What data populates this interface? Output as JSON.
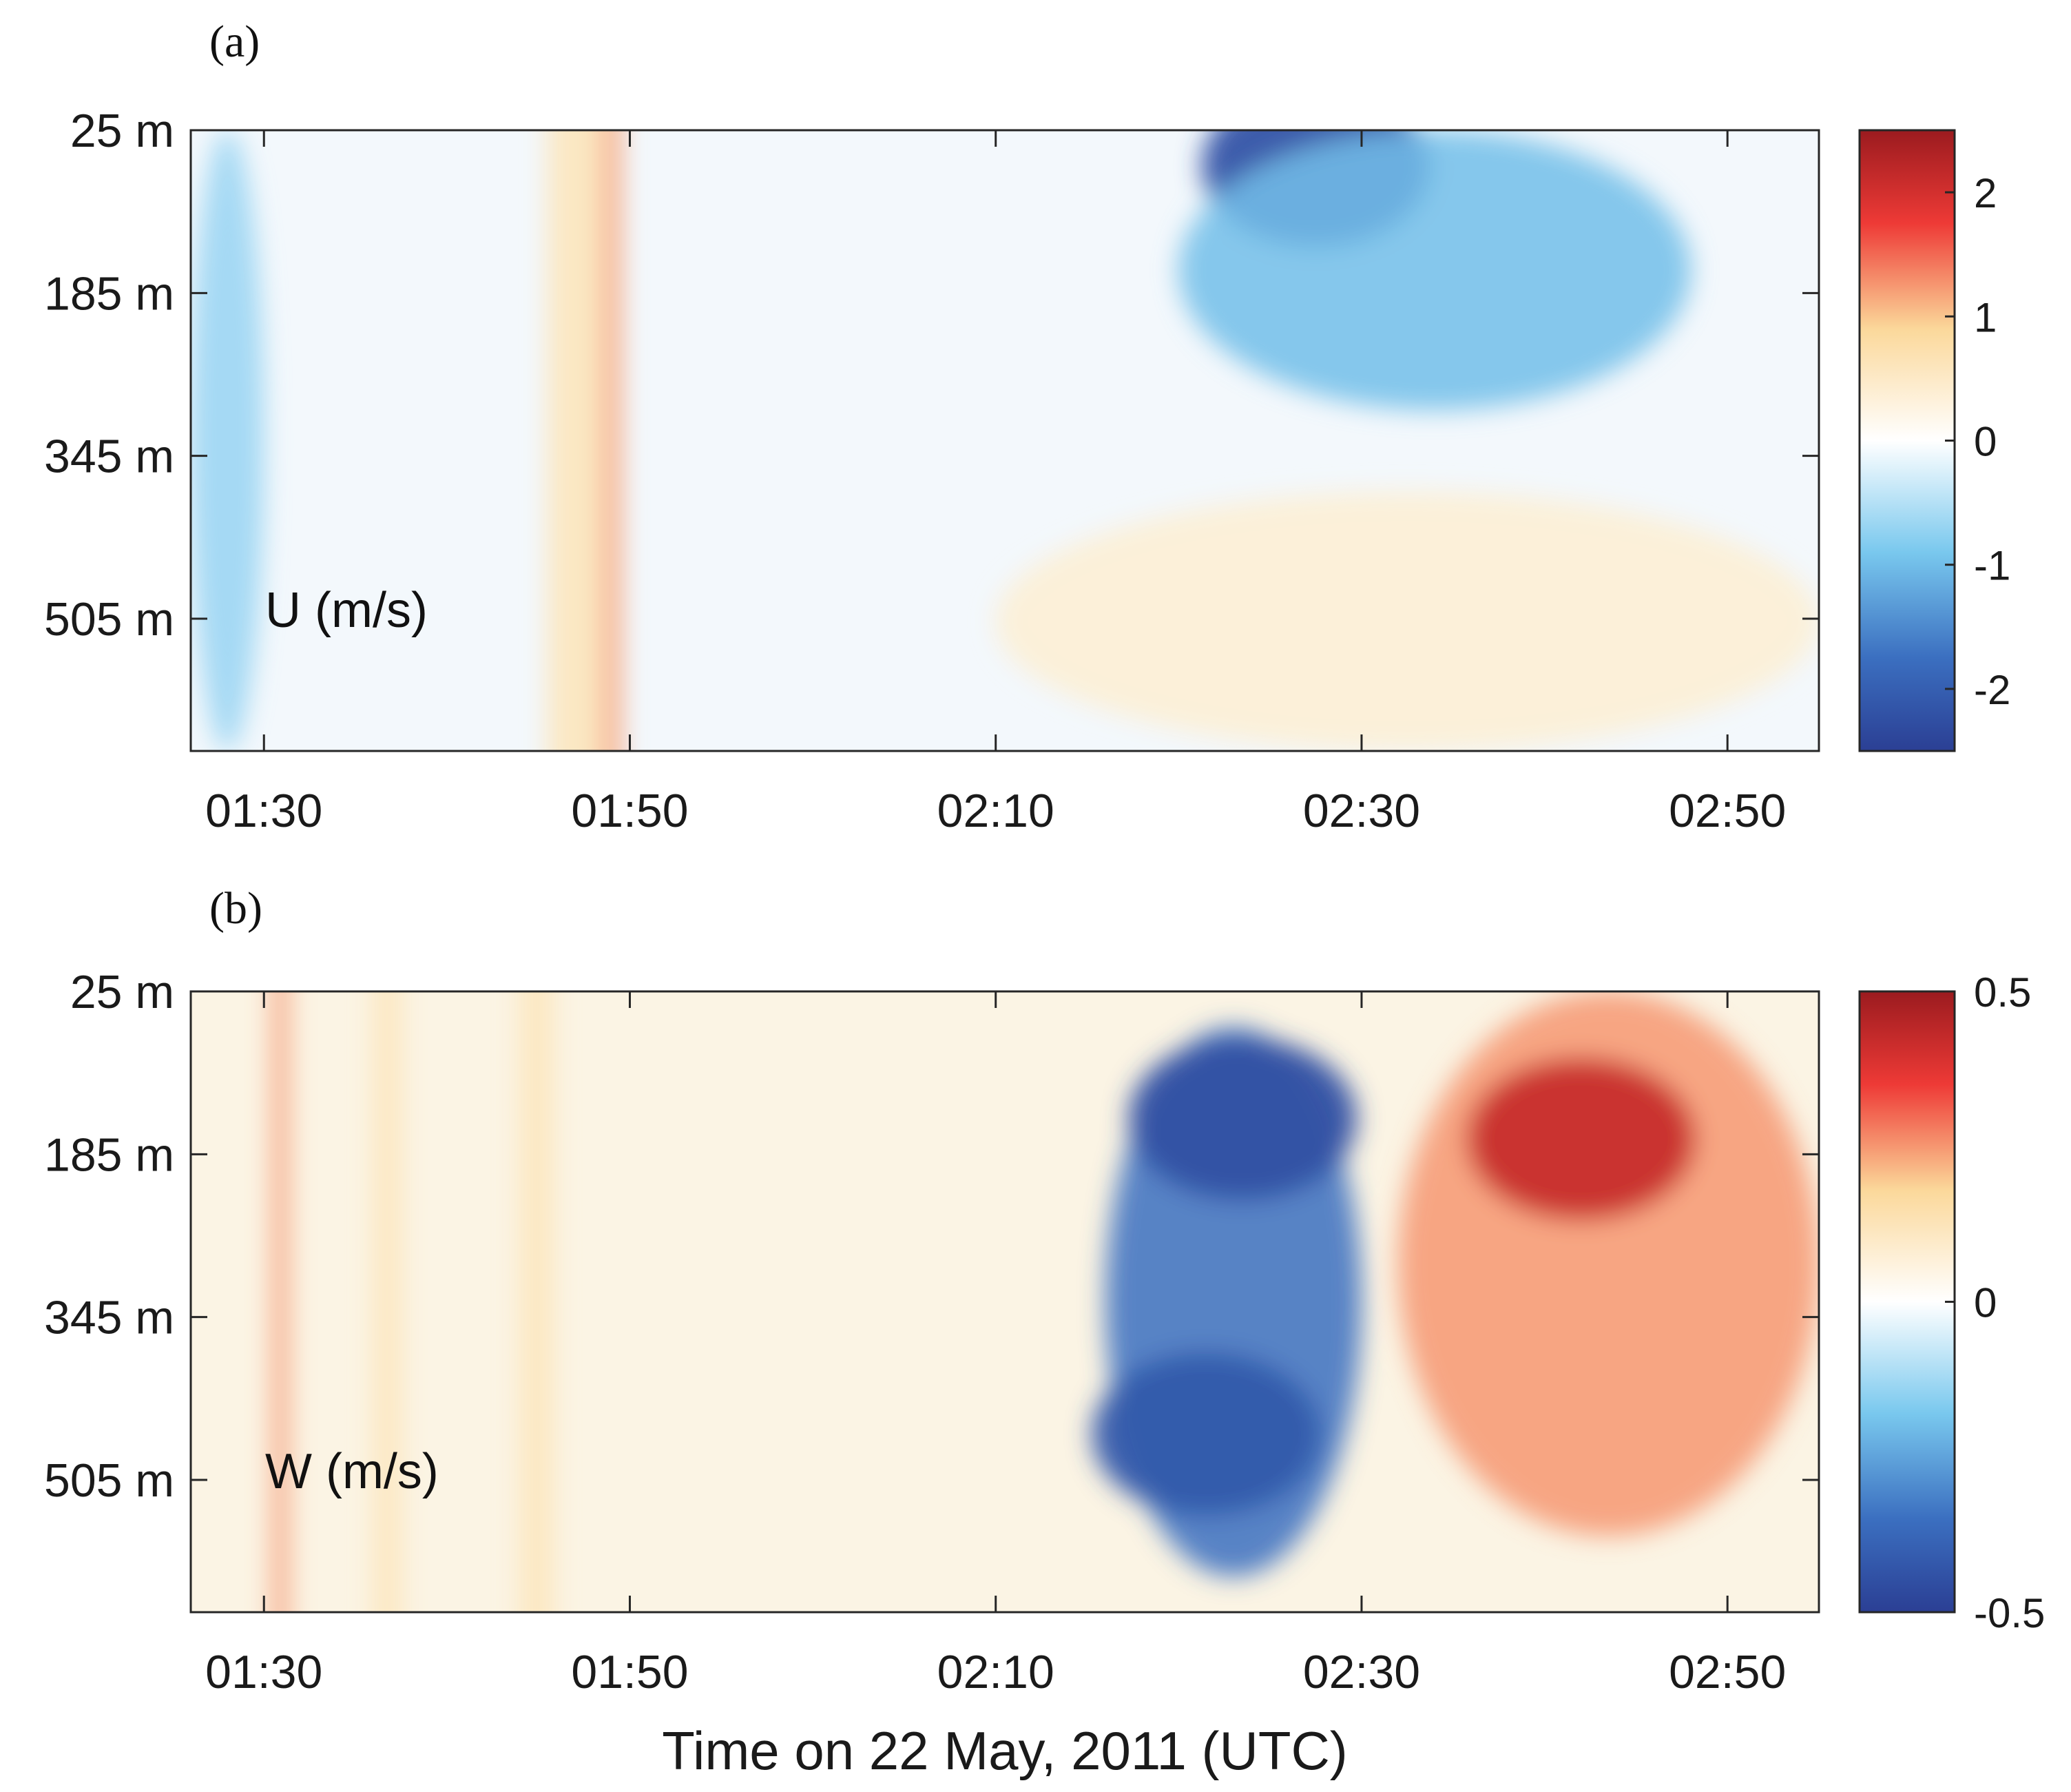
{
  "chart_data": [
    {
      "type": "heatmap",
      "panel": "(a)",
      "inner_label": "U (m/s)",
      "x_tick_labels": [
        "01:30",
        "01:50",
        "02:10",
        "02:30",
        "02:50"
      ],
      "x_ticks_min": [
        90,
        110,
        130,
        150,
        170
      ],
      "xlim_min": [
        86,
        175
      ],
      "y_tick_labels": [
        "25 m",
        "185 m",
        "345 m",
        "505 m"
      ],
      "y_ticks": [
        25,
        185,
        345,
        505
      ],
      "ylim": [
        25,
        635
      ],
      "y_reversed": true,
      "colorbar": {
        "range": [
          -2.5,
          2.5
        ],
        "tick_values": [
          2,
          1,
          0,
          -1,
          -2
        ],
        "tick_labels": [
          "2",
          "1",
          "0",
          "-1",
          "-2"
        ],
        "colormap": "blue-white-red"
      },
      "features": [
        {
          "kind": "band",
          "t_min": 105.5,
          "t_max": 108.5,
          "value": 0.6
        },
        {
          "kind": "band",
          "t_min": 108.5,
          "t_max": 109.5,
          "value": 1.2
        },
        {
          "kind": "blob",
          "t_min": 147.5,
          "depth_m": 60,
          "value": -2.2
        },
        {
          "kind": "region",
          "t_min": [
            140,
            168
          ],
          "depth_m": [
            25,
            300
          ],
          "value": -1.0
        },
        {
          "kind": "region",
          "t_min": [
            86,
            90
          ],
          "depth_m": [
            25,
            635
          ],
          "value": -0.7
        },
        {
          "kind": "region",
          "t_min": [
            130,
            175
          ],
          "depth_m": [
            380,
            635
          ],
          "value": 0.4
        }
      ]
    },
    {
      "type": "heatmap",
      "panel": "(b)",
      "inner_label": "W (m/s)",
      "x_tick_labels": [
        "01:30",
        "01:50",
        "02:10",
        "02:30",
        "02:50"
      ],
      "x_ticks_min": [
        90,
        110,
        130,
        150,
        170
      ],
      "xlim_min": [
        86,
        175
      ],
      "y_tick_labels": [
        "25 m",
        "185 m",
        "345 m",
        "505 m"
      ],
      "y_ticks": [
        25,
        185,
        345,
        505
      ],
      "ylim": [
        25,
        635
      ],
      "y_reversed": true,
      "colorbar": {
        "range": [
          -0.5,
          0.5
        ],
        "tick_values": [
          0.5,
          0,
          -0.5
        ],
        "tick_labels": [
          "0.5",
          "0",
          "-0.5"
        ],
        "colormap": "blue-white-red"
      },
      "features": [
        {
          "kind": "band",
          "t_min": 90.5,
          "t_max": 91.3,
          "value": 0.25
        },
        {
          "kind": "band",
          "t_min": 96.0,
          "t_max": 97.5,
          "value": 0.12
        },
        {
          "kind": "band",
          "t_min": 104.0,
          "t_max": 105.8,
          "value": 0.12
        },
        {
          "kind": "region",
          "t_min": [
            136,
            150
          ],
          "depth_m": [
            60,
            600
          ],
          "value": -0.35
        },
        {
          "kind": "blob",
          "t_min": 143.5,
          "depth_m": 150,
          "value": -0.45
        },
        {
          "kind": "blob",
          "t_min": 141.5,
          "depth_m": 460,
          "value": -0.42
        },
        {
          "kind": "region",
          "t_min": [
            152,
            175
          ],
          "depth_m": [
            25,
            560
          ],
          "value": 0.25
        },
        {
          "kind": "blob",
          "t_min": 162,
          "depth_m": 170,
          "value": 0.42
        }
      ]
    }
  ],
  "xlabel": "Time on 22 May, 2011 (UTC)"
}
